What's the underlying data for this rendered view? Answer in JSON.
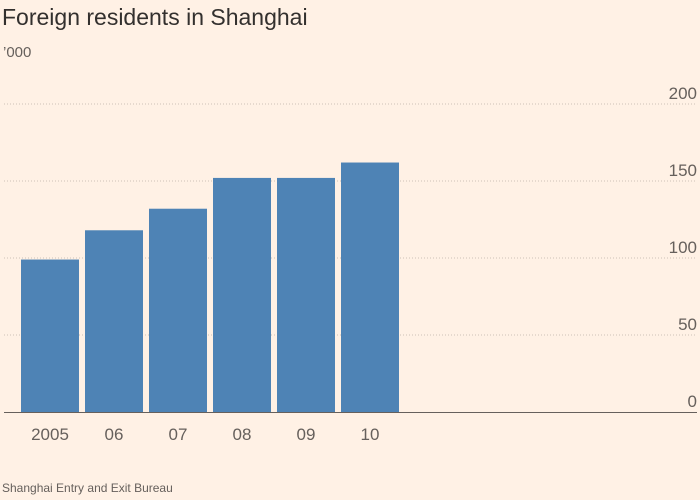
{
  "header": {
    "title": "Foreign residents in Shanghai",
    "units": "’000"
  },
  "footer": {
    "source": "Shanghai Entry and Exit Bureau"
  },
  "colors": {
    "background": "#fff1e5",
    "bar": "#4e83b5",
    "axis_text": "#66605c",
    "grid": "#ccc1b7",
    "baseline": "#66605c"
  },
  "chart_data": {
    "type": "bar",
    "title": "Foreign residents in Shanghai",
    "ylabel": "’000",
    "xlabel": "",
    "categories": [
      "2005",
      "06",
      "07",
      "08",
      "09",
      "10"
    ],
    "values": [
      99,
      118,
      132,
      152,
      152,
      162
    ],
    "ylim": [
      0,
      200
    ],
    "yticks": [
      0,
      50,
      100,
      150,
      200
    ],
    "ytick_labels": [
      "0",
      "50",
      "100",
      "150",
      "200"
    ],
    "grid": true,
    "y_axis_side": "right"
  }
}
